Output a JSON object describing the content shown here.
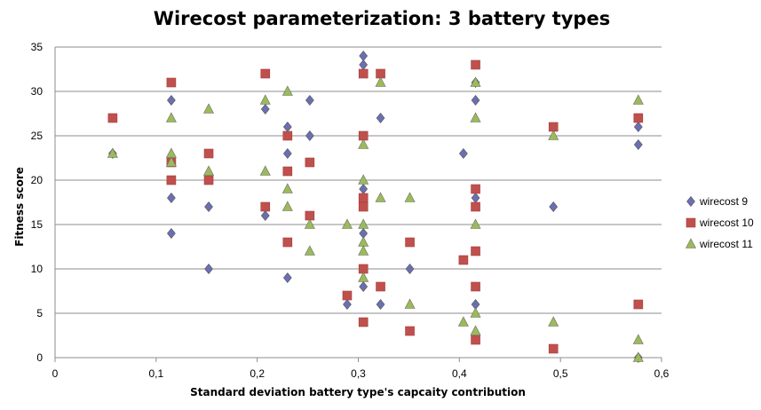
{
  "chart_data": {
    "type": "scatter",
    "title": "Wirecost parameterization: 3 battery types",
    "xlabel": "Standard deviation battery type's capcaity contribution",
    "ylabel": "Fitness score",
    "xlim": [
      0,
      0.6
    ],
    "ylim": [
      0,
      35
    ],
    "x_ticks": [
      "0",
      "0,1",
      "0,2",
      "0,3",
      "0,4",
      "0,5",
      "0,6"
    ],
    "y_ticks": [
      "0",
      "5",
      "10",
      "15",
      "20",
      "25",
      "30",
      "35"
    ],
    "grid": "horizontal",
    "legend_position": "right",
    "series": [
      {
        "name": "wirecost 9",
        "marker": "diamond",
        "color": "#6a6fb4",
        "points": [
          [
            0.057,
            23
          ],
          [
            0.115,
            29
          ],
          [
            0.115,
            18
          ],
          [
            0.115,
            14
          ],
          [
            0.152,
            17
          ],
          [
            0.152,
            10
          ],
          [
            0.208,
            28
          ],
          [
            0.208,
            16
          ],
          [
            0.23,
            26
          ],
          [
            0.23,
            23
          ],
          [
            0.23,
            9
          ],
          [
            0.252,
            29
          ],
          [
            0.252,
            25
          ],
          [
            0.289,
            6
          ],
          [
            0.305,
            34
          ],
          [
            0.305,
            33
          ],
          [
            0.305,
            19
          ],
          [
            0.305,
            14
          ],
          [
            0.305,
            8
          ],
          [
            0.322,
            27
          ],
          [
            0.322,
            6
          ],
          [
            0.351,
            10
          ],
          [
            0.404,
            23
          ],
          [
            0.416,
            31
          ],
          [
            0.416,
            29
          ],
          [
            0.416,
            18
          ],
          [
            0.416,
            6
          ],
          [
            0.493,
            17
          ],
          [
            0.577,
            26
          ],
          [
            0.577,
            24
          ],
          [
            0.577,
            0
          ]
        ]
      },
      {
        "name": "wirecost 10",
        "marker": "square",
        "color": "#c0504d",
        "points": [
          [
            0.057,
            27
          ],
          [
            0.115,
            31
          ],
          [
            0.115,
            22
          ],
          [
            0.115,
            20
          ],
          [
            0.152,
            23
          ],
          [
            0.152,
            20
          ],
          [
            0.208,
            32
          ],
          [
            0.208,
            17
          ],
          [
            0.23,
            25
          ],
          [
            0.23,
            21
          ],
          [
            0.23,
            13
          ],
          [
            0.252,
            22
          ],
          [
            0.252,
            16
          ],
          [
            0.289,
            7
          ],
          [
            0.305,
            32
          ],
          [
            0.305,
            25
          ],
          [
            0.305,
            18
          ],
          [
            0.305,
            17
          ],
          [
            0.305,
            10
          ],
          [
            0.305,
            4
          ],
          [
            0.322,
            32
          ],
          [
            0.322,
            8
          ],
          [
            0.351,
            13
          ],
          [
            0.351,
            3
          ],
          [
            0.404,
            11
          ],
          [
            0.416,
            33
          ],
          [
            0.416,
            19
          ],
          [
            0.416,
            17
          ],
          [
            0.416,
            12
          ],
          [
            0.416,
            8
          ],
          [
            0.416,
            2
          ],
          [
            0.493,
            26
          ],
          [
            0.493,
            1
          ],
          [
            0.577,
            27
          ],
          [
            0.577,
            6
          ]
        ]
      },
      {
        "name": "wirecost 11",
        "marker": "triangle",
        "color": "#9bbb59",
        "points": [
          [
            0.057,
            23
          ],
          [
            0.115,
            27
          ],
          [
            0.115,
            23
          ],
          [
            0.115,
            22
          ],
          [
            0.152,
            28
          ],
          [
            0.152,
            21
          ],
          [
            0.208,
            29
          ],
          [
            0.208,
            21
          ],
          [
            0.23,
            30
          ],
          [
            0.23,
            19
          ],
          [
            0.23,
            17
          ],
          [
            0.252,
            15
          ],
          [
            0.252,
            12
          ],
          [
            0.289,
            15
          ],
          [
            0.305,
            24
          ],
          [
            0.305,
            20
          ],
          [
            0.305,
            15
          ],
          [
            0.305,
            13
          ],
          [
            0.305,
            12
          ],
          [
            0.305,
            9
          ],
          [
            0.322,
            31
          ],
          [
            0.322,
            18
          ],
          [
            0.351,
            18
          ],
          [
            0.351,
            6
          ],
          [
            0.404,
            4
          ],
          [
            0.416,
            31
          ],
          [
            0.416,
            27
          ],
          [
            0.416,
            15
          ],
          [
            0.416,
            5
          ],
          [
            0.416,
            3
          ],
          [
            0.493,
            25
          ],
          [
            0.493,
            4
          ],
          [
            0.577,
            29
          ],
          [
            0.577,
            2
          ],
          [
            0.577,
            0
          ]
        ]
      }
    ]
  }
}
